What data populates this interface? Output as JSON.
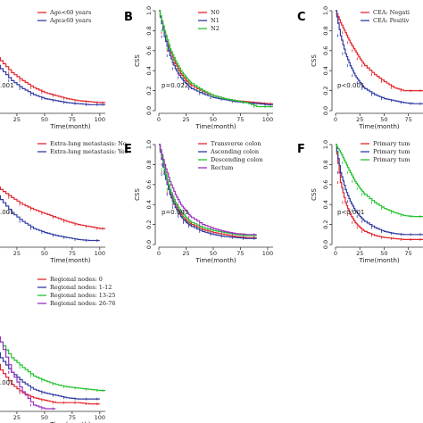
{
  "chart_data": [
    {
      "type": "line",
      "xlabel": "Time(month)",
      "ylabel": "",
      "xlim": [
        0,
        105
      ],
      "ylim": [
        0,
        1
      ],
      "xticks": [
        25,
        50,
        75,
        100
      ],
      "pvalue": ".001",
      "legend": [
        "Age<60 years",
        "Age≥60 years"
      ],
      "series": [
        {
          "name": "Age<60 years",
          "color": "#e3262d",
          "x": [
            0,
            10,
            20,
            30,
            40,
            50,
            60,
            70,
            80,
            90,
            100,
            105
          ],
          "y": [
            0.62,
            0.5,
            0.38,
            0.3,
            0.23,
            0.18,
            0.15,
            0.12,
            0.1,
            0.09,
            0.08,
            0.08
          ]
        },
        {
          "name": "Age≥60 years",
          "color": "#2f3aa3",
          "x": [
            0,
            10,
            20,
            30,
            40,
            50,
            60,
            70,
            80,
            90,
            100,
            105
          ],
          "y": [
            0.55,
            0.42,
            0.3,
            0.22,
            0.16,
            0.12,
            0.1,
            0.08,
            0.07,
            0.06,
            0.06,
            0.06
          ]
        }
      ]
    },
    {
      "letter": "B",
      "type": "line",
      "xlabel": "Time(month)",
      "ylabel": "CSS",
      "xlim": [
        0,
        105
      ],
      "ylim": [
        0,
        1
      ],
      "xticks": [
        0,
        25,
        50,
        75,
        100
      ],
      "yticks": [
        0.0,
        0.2,
        0.4,
        0.6,
        0.8,
        1.0
      ],
      "pvalue": "p=0.022",
      "legend": [
        "N0",
        "N1",
        "N2"
      ],
      "series": [
        {
          "name": "N0",
          "color": "#e3262d",
          "x": [
            0,
            5,
            10,
            15,
            20,
            25,
            30,
            40,
            50,
            60,
            70,
            80,
            90,
            100,
            105
          ],
          "y": [
            1.0,
            0.78,
            0.6,
            0.47,
            0.37,
            0.3,
            0.25,
            0.19,
            0.15,
            0.12,
            0.1,
            0.09,
            0.08,
            0.07,
            0.07
          ]
        },
        {
          "name": "N1",
          "color": "#2f3aa3",
          "x": [
            0,
            5,
            10,
            15,
            20,
            25,
            30,
            40,
            50,
            60,
            70,
            80,
            90,
            100,
            105
          ],
          "y": [
            1.0,
            0.74,
            0.55,
            0.42,
            0.33,
            0.27,
            0.22,
            0.17,
            0.13,
            0.11,
            0.09,
            0.08,
            0.07,
            0.06,
            0.06
          ]
        },
        {
          "name": "N2",
          "color": "#22c22e",
          "x": [
            0,
            5,
            10,
            15,
            20,
            25,
            30,
            40,
            50,
            60,
            70,
            80,
            90,
            100,
            105
          ],
          "y": [
            1.0,
            0.8,
            0.62,
            0.5,
            0.4,
            0.33,
            0.27,
            0.2,
            0.15,
            0.12,
            0.1,
            0.08,
            0.04,
            0.04,
            0.04
          ]
        }
      ]
    },
    {
      "letter": "C",
      "type": "line",
      "xlabel": "Time(month)",
      "ylabel": "CSS",
      "xlim": [
        0,
        90
      ],
      "ylim": [
        0,
        1
      ],
      "xticks": [
        0,
        25,
        50,
        75
      ],
      "yticks": [
        0.0,
        0.2,
        0.4,
        0.6,
        0.8,
        1.0
      ],
      "pvalue": "p<0.001",
      "legend": [
        "CEA: Negati",
        "CEA: Positiv"
      ],
      "series": [
        {
          "name": "CEA: Negati",
          "color": "#e3262d",
          "x": [
            0,
            5,
            10,
            15,
            20,
            25,
            30,
            40,
            50,
            60,
            70,
            80,
            90
          ],
          "y": [
            1.0,
            0.88,
            0.78,
            0.68,
            0.6,
            0.52,
            0.45,
            0.36,
            0.29,
            0.23,
            0.2,
            0.2,
            0.2
          ]
        },
        {
          "name": "CEA: Positiv",
          "color": "#2f3aa3",
          "x": [
            0,
            5,
            10,
            15,
            20,
            25,
            30,
            40,
            50,
            60,
            70,
            80,
            90
          ],
          "y": [
            1.0,
            0.75,
            0.57,
            0.45,
            0.35,
            0.28,
            0.22,
            0.16,
            0.12,
            0.1,
            0.08,
            0.07,
            0.07
          ]
        }
      ]
    },
    {
      "type": "line",
      "xlabel": "Time(month)",
      "ylabel": "",
      "xlim": [
        0,
        105
      ],
      "ylim": [
        0,
        1
      ],
      "xticks": [
        25,
        50,
        75,
        100
      ],
      "pvalue": ".001",
      "legend": [
        "Extra-lung metastasis: No",
        "Extra-lung metastasis: Yes"
      ],
      "series": [
        {
          "name": "Extra-lung metastasis: No",
          "color": "#e3262d",
          "x": [
            0,
            10,
            20,
            30,
            40,
            50,
            60,
            70,
            80,
            90,
            100,
            105
          ],
          "y": [
            0.65,
            0.55,
            0.47,
            0.4,
            0.35,
            0.31,
            0.27,
            0.23,
            0.2,
            0.18,
            0.16,
            0.16
          ]
        },
        {
          "name": "Extra-lung metastasis: Yes",
          "color": "#2f3aa3",
          "x": [
            0,
            10,
            20,
            30,
            40,
            50,
            60,
            70,
            80,
            90,
            100
          ],
          "y": [
            0.6,
            0.45,
            0.32,
            0.23,
            0.16,
            0.12,
            0.09,
            0.07,
            0.05,
            0.04,
            0.04
          ]
        }
      ]
    },
    {
      "letter": "E",
      "type": "line",
      "xlabel": "Time(month)",
      "ylabel": "CSS",
      "xlim": [
        0,
        105
      ],
      "ylim": [
        0,
        1
      ],
      "xticks": [
        0,
        25,
        50,
        75,
        100
      ],
      "yticks": [
        0.0,
        0.2,
        0.4,
        0.6,
        0.8,
        1.0
      ],
      "pvalue": "p=0.003",
      "legend": [
        "Transverse colon",
        "Ascending colon",
        "Descending colon",
        "Rectum"
      ],
      "series": [
        {
          "name": "Transverse colon",
          "color": "#e3262d",
          "x": [
            0,
            5,
            10,
            15,
            20,
            25,
            30,
            40,
            50,
            60,
            70,
            80,
            90
          ],
          "y": [
            1.0,
            0.72,
            0.52,
            0.4,
            0.3,
            0.24,
            0.2,
            0.15,
            0.12,
            0.1,
            0.08,
            0.07,
            0.07
          ]
        },
        {
          "name": "Ascending colon",
          "color": "#2f3aa3",
          "x": [
            0,
            5,
            10,
            15,
            20,
            25,
            30,
            40,
            50,
            60,
            70,
            80,
            90
          ],
          "y": [
            1.0,
            0.7,
            0.5,
            0.37,
            0.28,
            0.22,
            0.18,
            0.13,
            0.1,
            0.08,
            0.07,
            0.06,
            0.06
          ]
        },
        {
          "name": "Descending colon",
          "color": "#22c22e",
          "x": [
            0,
            5,
            10,
            15,
            20,
            25,
            30,
            40,
            50,
            60,
            70,
            80,
            90
          ],
          "y": [
            1.0,
            0.75,
            0.55,
            0.42,
            0.33,
            0.27,
            0.22,
            0.17,
            0.14,
            0.12,
            0.1,
            0.09,
            0.09
          ]
        },
        {
          "name": "Rectum",
          "color": "#9b2fbf",
          "x": [
            0,
            5,
            10,
            15,
            20,
            25,
            30,
            40,
            50,
            60,
            70,
            80,
            90
          ],
          "y": [
            1.0,
            0.8,
            0.63,
            0.5,
            0.4,
            0.33,
            0.27,
            0.2,
            0.16,
            0.13,
            0.11,
            0.1,
            0.1
          ]
        }
      ]
    },
    {
      "letter": "F",
      "type": "line",
      "xlabel": "Time(month)",
      "ylabel": "CSS",
      "xlim": [
        0,
        90
      ],
      "ylim": [
        0,
        1
      ],
      "xticks": [
        0,
        25,
        50,
        75
      ],
      "yticks": [
        0.0,
        0.2,
        0.4,
        0.6,
        0.8,
        1.0
      ],
      "pvalue": "p<0.001",
      "legend": [
        "Primary tum",
        "Primary tum",
        "Primary tum"
      ],
      "series": [
        {
          "name": "Primary tum",
          "color": "#e3262d",
          "x": [
            0,
            5,
            10,
            15,
            20,
            25,
            30,
            40,
            50,
            60,
            70,
            80,
            90
          ],
          "y": [
            1.0,
            0.62,
            0.42,
            0.3,
            0.22,
            0.17,
            0.13,
            0.09,
            0.07,
            0.06,
            0.05,
            0.05,
            0.05
          ]
        },
        {
          "name": "Primary tum",
          "color": "#2f3aa3",
          "x": [
            0,
            5,
            10,
            15,
            20,
            25,
            30,
            40,
            50,
            60,
            70,
            80,
            90
          ],
          "y": [
            1.0,
            0.72,
            0.55,
            0.43,
            0.34,
            0.28,
            0.23,
            0.17,
            0.13,
            0.11,
            0.1,
            0.1,
            0.1
          ]
        },
        {
          "name": "Primary tum",
          "color": "#22c22e",
          "x": [
            0,
            5,
            10,
            15,
            20,
            25,
            30,
            40,
            50,
            60,
            70,
            80,
            90
          ],
          "y": [
            1.0,
            0.92,
            0.82,
            0.72,
            0.63,
            0.56,
            0.5,
            0.42,
            0.36,
            0.32,
            0.29,
            0.28,
            0.28
          ]
        }
      ]
    },
    {
      "type": "line",
      "xlabel": "Time(month)",
      "ylabel": "",
      "xlim": [
        0,
        105
      ],
      "ylim": [
        0,
        1
      ],
      "xticks": [
        25,
        50,
        75,
        100
      ],
      "pvalue": ".001",
      "legend": [
        "Regional nodes: 0",
        "Regional nodes: 1-12",
        "Regional nodes: 13-25",
        "Regional nodes: 26-76"
      ],
      "series": [
        {
          "name": "Regional nodes: 0",
          "color": "#e3262d",
          "x": [
            0,
            10,
            20,
            30,
            40,
            50,
            60,
            70,
            80,
            90,
            100
          ],
          "y": [
            0.5,
            0.32,
            0.2,
            0.13,
            0.09,
            0.07,
            0.05,
            0.05,
            0.05,
            0.04,
            0.04
          ]
        },
        {
          "name": "Regional nodes: 1-12",
          "color": "#2f3aa3",
          "x": [
            0,
            10,
            20,
            30,
            40,
            50,
            60,
            70,
            80,
            90,
            100
          ],
          "y": [
            0.58,
            0.42,
            0.3,
            0.22,
            0.16,
            0.13,
            0.11,
            0.09,
            0.08,
            0.08,
            0.08
          ]
        },
        {
          "name": "Regional nodes: 13-25",
          "color": "#22c22e",
          "x": [
            0,
            10,
            20,
            30,
            40,
            50,
            60,
            70,
            80,
            90,
            100,
            105
          ],
          "y": [
            0.68,
            0.55,
            0.42,
            0.34,
            0.27,
            0.23,
            0.2,
            0.18,
            0.17,
            0.16,
            0.15,
            0.15
          ]
        },
        {
          "name": "Regional nodes: 26-76",
          "color": "#9b2fbf",
          "x": [
            0,
            10,
            20,
            30,
            40,
            50,
            60
          ],
          "y": [
            0.72,
            0.55,
            0.3,
            0.14,
            0.03,
            0.0,
            0.0
          ]
        }
      ]
    }
  ]
}
